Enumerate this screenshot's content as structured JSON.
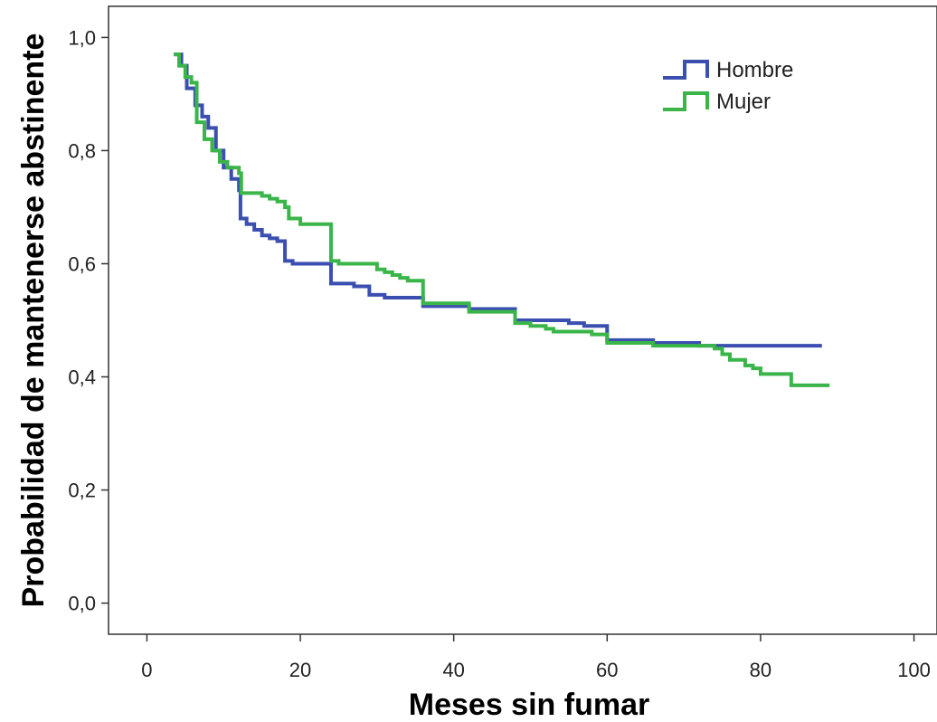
{
  "chart_data": {
    "type": "line",
    "step": true,
    "xlabel": "Meses sin fumar",
    "ylabel": "Probabilidad de mantenerse abstinente",
    "xlim": [
      -5,
      103
    ],
    "ylim": [
      -0.055,
      1.055
    ],
    "xticks": [
      0,
      20,
      40,
      60,
      80,
      100
    ],
    "xtick_labels": [
      "0",
      "20",
      "40",
      "60",
      "80",
      "100"
    ],
    "yticks": [
      0.0,
      0.2,
      0.4,
      0.6,
      0.8,
      1.0
    ],
    "ytick_labels": [
      "0,0",
      "0,2",
      "0,4",
      "0,6",
      "0,8",
      "1,0"
    ],
    "grid": false,
    "legend_position": "top-right",
    "series": [
      {
        "name": "Hombre",
        "color": "#3a4fb0",
        "points": [
          [
            3.5,
            0.97
          ],
          [
            4.5,
            0.95
          ],
          [
            5.2,
            0.91
          ],
          [
            6.3,
            0.88
          ],
          [
            7.2,
            0.86
          ],
          [
            8.0,
            0.84
          ],
          [
            9.0,
            0.8
          ],
          [
            10.0,
            0.77
          ],
          [
            11.0,
            0.75
          ],
          [
            12.0,
            0.73
          ],
          [
            12.2,
            0.68
          ],
          [
            13.0,
            0.67
          ],
          [
            14.0,
            0.66
          ],
          [
            15.0,
            0.65
          ],
          [
            16.0,
            0.645
          ],
          [
            17.0,
            0.64
          ],
          [
            18.0,
            0.605
          ],
          [
            19.0,
            0.6
          ],
          [
            24.0,
            0.565
          ],
          [
            27.0,
            0.56
          ],
          [
            29.0,
            0.545
          ],
          [
            31.0,
            0.54
          ],
          [
            36.0,
            0.525
          ],
          [
            42.0,
            0.52
          ],
          [
            48.0,
            0.5
          ],
          [
            55.0,
            0.495
          ],
          [
            57.0,
            0.49
          ],
          [
            60.0,
            0.465
          ],
          [
            66.0,
            0.46
          ],
          [
            72.0,
            0.455
          ],
          [
            88.0,
            0.455
          ]
        ]
      },
      {
        "name": "Mujer",
        "color": "#3ab54a",
        "points": [
          [
            3.5,
            0.97
          ],
          [
            4.2,
            0.95
          ],
          [
            5.0,
            0.93
          ],
          [
            5.8,
            0.92
          ],
          [
            6.5,
            0.85
          ],
          [
            7.5,
            0.82
          ],
          [
            8.5,
            0.8
          ],
          [
            9.5,
            0.78
          ],
          [
            10.5,
            0.77
          ],
          [
            12.0,
            0.76
          ],
          [
            12.3,
            0.725
          ],
          [
            15.0,
            0.72
          ],
          [
            16.0,
            0.715
          ],
          [
            17.0,
            0.71
          ],
          [
            18.0,
            0.7
          ],
          [
            18.5,
            0.68
          ],
          [
            20.0,
            0.67
          ],
          [
            24.0,
            0.605
          ],
          [
            25.0,
            0.6
          ],
          [
            30.0,
            0.59
          ],
          [
            31.0,
            0.585
          ],
          [
            32.0,
            0.58
          ],
          [
            33.0,
            0.575
          ],
          [
            34.0,
            0.57
          ],
          [
            36.0,
            0.53
          ],
          [
            42.0,
            0.515
          ],
          [
            48.0,
            0.495
          ],
          [
            50.0,
            0.49
          ],
          [
            52.0,
            0.485
          ],
          [
            53.0,
            0.48
          ],
          [
            58.0,
            0.475
          ],
          [
            60.0,
            0.46
          ],
          [
            66.0,
            0.455
          ],
          [
            74.0,
            0.45
          ],
          [
            75.0,
            0.44
          ],
          [
            76.0,
            0.43
          ],
          [
            78.0,
            0.42
          ],
          [
            79.0,
            0.415
          ],
          [
            80.0,
            0.405
          ],
          [
            84.0,
            0.385
          ],
          [
            89.0,
            0.385
          ]
        ]
      }
    ]
  }
}
